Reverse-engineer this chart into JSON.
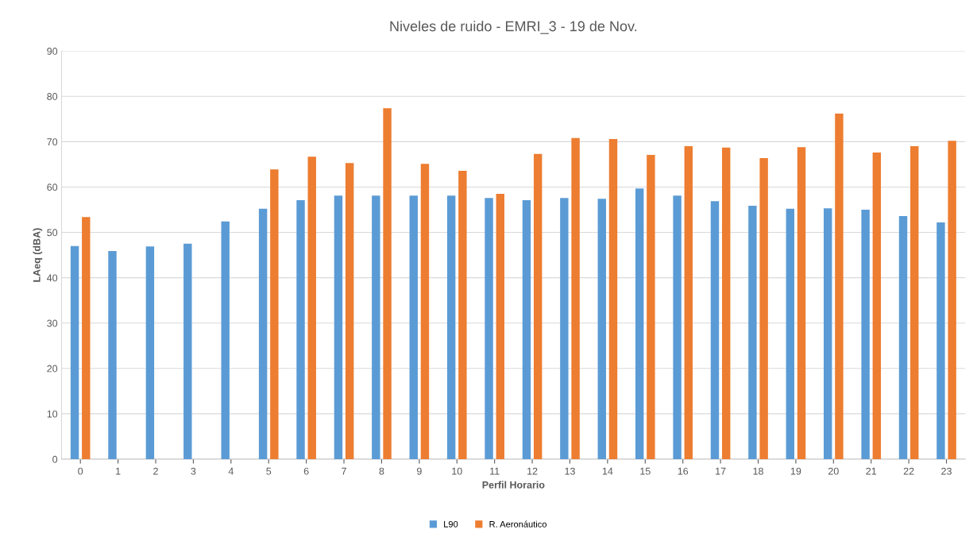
{
  "chart_data": {
    "type": "bar",
    "title": "Niveles de ruido - EMRI_3 - 19 de Nov.",
    "xlabel": "Perfil Horario",
    "ylabel": "LAeq (dBA)",
    "categories": [
      "0",
      "1",
      "2",
      "3",
      "4",
      "5",
      "6",
      "7",
      "8",
      "9",
      "10",
      "11",
      "12",
      "13",
      "14",
      "15",
      "16",
      "17",
      "18",
      "19",
      "20",
      "21",
      "22",
      "23"
    ],
    "series": [
      {
        "name": "L90",
        "color": "#5b9bd5",
        "values": [
          47,
          45.9,
          46.9,
          47.5,
          52.4,
          55.2,
          57.1,
          58.1,
          58.1,
          58.1,
          58.1,
          57.6,
          57.1,
          57.6,
          57.4,
          59.7,
          58.1,
          56.9,
          55.9,
          55.2,
          55.3,
          55.0,
          53.6,
          52.2
        ]
      },
      {
        "name": "R. Aeronáutico",
        "color": "#ed7d31",
        "values": [
          53.4,
          null,
          null,
          null,
          null,
          63.9,
          66.7,
          65.3,
          77.4,
          65.1,
          63.6,
          58.5,
          67.3,
          70.8,
          70.6,
          67.1,
          69.0,
          68.7,
          66.4,
          68.8,
          76.2,
          67.6,
          69.0,
          70.2
        ]
      }
    ],
    "ylim": [
      0,
      90
    ],
    "yticks": [
      0,
      10,
      20,
      30,
      40,
      50,
      60,
      70,
      80,
      90
    ],
    "grid": "y",
    "legend": "bottom"
  }
}
